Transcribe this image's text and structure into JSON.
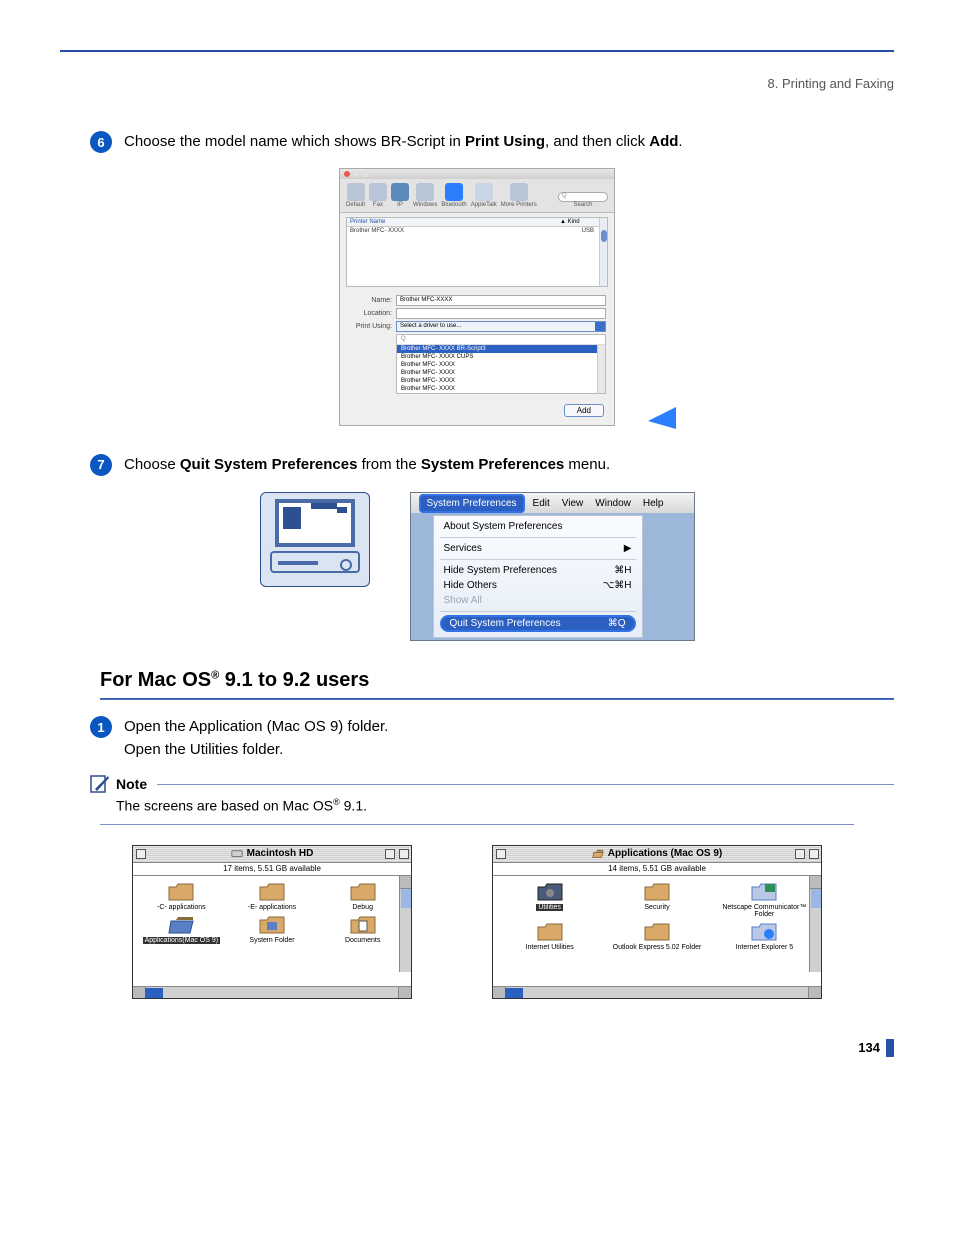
{
  "breadcrumb": "8. Printing and Faxing",
  "page_number": "134",
  "steps": {
    "s6": {
      "num": "6",
      "pre": "Choose the model name which shows BR-Script in ",
      "b1": "Print Using",
      "mid": ", and then click ",
      "b2": "Add",
      "post": "."
    },
    "s7": {
      "num": "7",
      "pre": "Choose ",
      "b1": "Quit System Preferences",
      "mid": " from the ",
      "b2": "System Preferences",
      "post": " menu."
    },
    "s1": {
      "num": "1",
      "line1": "Open the Application (Mac OS 9) folder.",
      "line2": "Open the Utilities folder."
    }
  },
  "section": {
    "pre": "For Mac OS",
    "sup": "®",
    "post": " 9.1 to 9.2 users"
  },
  "note": {
    "label": "Note",
    "pre": "The screens are based on Mac OS",
    "sup": "®",
    "post": " 9.1."
  },
  "printer_win": {
    "traffic": [
      "#e9594c",
      "#e0e0e0",
      "#e0e0e0"
    ],
    "toolbar": [
      "Default",
      "Fax",
      "IP",
      "Windows",
      "Bluetooth",
      "AppleTalk",
      "More Printers"
    ],
    "toolbar_colors": [
      "#b8c5d6",
      "#b8c5d6",
      "#5a8bb8",
      "#b8c5d6",
      "#2b7fff",
      "#c8d5e6",
      "#b8c5d6"
    ],
    "search_label": "Search",
    "list_hdr_name": "Printer Name",
    "list_hdr_kind": "Kind",
    "list_row_name": "Brother MFC- XXXX",
    "list_row_kind": "USB",
    "form_name_lbl": "Name:",
    "form_name_val": "Brother MFC-XXXX",
    "form_loc_lbl": "Location:",
    "form_pu_lbl": "Print Using:",
    "form_pu_val": "Select a driver to use...",
    "drop_search": "Q",
    "drop_sel": "Brother MFC- XXXX   BR-Script3",
    "drop_rows": [
      "Brother MFC- XXXX   CUPS",
      "Brother MFC- XXXX",
      "Brother MFC- XXXX",
      "Brother MFC- XXXX",
      "Brother MFC- XXXX"
    ],
    "add_btn": "Add",
    "arrow_color": "#2b7fff"
  },
  "menu_win": {
    "bar": {
      "sel": "System Preferences",
      "items": [
        "Edit",
        "View",
        "Window",
        "Help"
      ]
    },
    "rows": {
      "about": "About System Preferences",
      "services": "Services",
      "hide": "Hide System Preferences",
      "hide_k": "⌘H",
      "hideo": "Hide Others",
      "hideo_k": "⌥⌘H",
      "show": "Show All",
      "quit": "Quit System Preferences",
      "quit_k": "⌘Q"
    }
  },
  "finder1": {
    "title": "Macintosh HD",
    "sub": "17 items, 5.51 GB available",
    "items": [
      {
        "lbl": "-C- applications",
        "type": "folder"
      },
      {
        "lbl": "-E- applications",
        "type": "folder"
      },
      {
        "lbl": "Debug",
        "type": "folder"
      },
      {
        "lbl": "Applications(Mac OS 9)",
        "type": "folder-open",
        "sel": true
      },
      {
        "lbl": "System Folder",
        "type": "sys"
      },
      {
        "lbl": "Documents",
        "type": "doc"
      }
    ]
  },
  "finder2": {
    "title": "Applications (Mac OS 9)",
    "sub": "14 items, 5.51 GB available",
    "items": [
      {
        "lbl": "Utilities",
        "type": "util",
        "sel": true
      },
      {
        "lbl": "Security",
        "type": "folder"
      },
      {
        "lbl": "Netscape Communicator™ Folder",
        "type": "ns"
      },
      {
        "lbl": "Internet Utilities",
        "type": "folder"
      },
      {
        "lbl": "Outlook Express 5.02 Folder",
        "type": "folder"
      },
      {
        "lbl": "Internet Explorer 5",
        "type": "ie"
      }
    ]
  }
}
